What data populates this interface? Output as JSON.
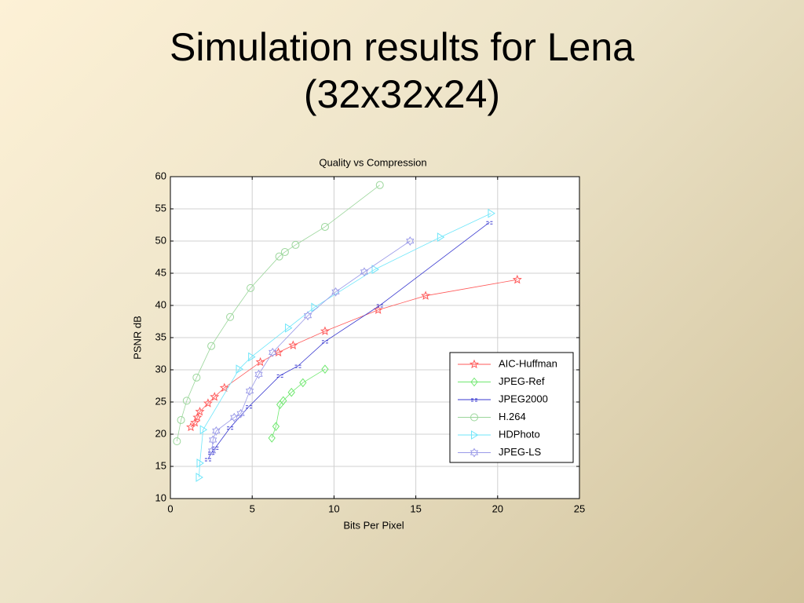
{
  "slide_title": "Simulation results for Lena (32x32x24)",
  "chart_data": {
    "type": "line",
    "title": "Quality vs Compression",
    "x_label": "Bits Per Pixel",
    "y_label": "PSNR dB",
    "xlim": [
      0,
      25
    ],
    "ylim": [
      10,
      60
    ],
    "xticks": [
      0,
      5,
      10,
      15,
      20,
      25
    ],
    "yticks": [
      10,
      15,
      20,
      25,
      30,
      35,
      40,
      45,
      50,
      55,
      60
    ],
    "grid": true,
    "legend": "lower right",
    "series": [
      {
        "name": "AIC-Huffman",
        "color": "#ff5a5a",
        "marker": "star",
        "x": [
          1.25,
          1.5,
          1.65,
          1.8,
          2.3,
          2.7,
          3.3,
          5.5,
          6.6,
          7.5,
          9.45,
          12.7,
          15.6,
          21.2
        ],
        "values": [
          21.1,
          21.8,
          22.6,
          23.5,
          24.8,
          25.8,
          27.2,
          31.2,
          32.7,
          33.8,
          36.0,
          39.3,
          41.5,
          44.0
        ]
      },
      {
        "name": "JPEG-Ref",
        "color": "#6fe86f",
        "marker": "diamond",
        "x": [
          6.2,
          6.45,
          6.7,
          6.9,
          7.4,
          8.1,
          9.45
        ],
        "values": [
          19.4,
          21.2,
          24.6,
          25.2,
          26.5,
          28.0,
          30.1
        ]
      },
      {
        "name": "JPEG2000",
        "color": "#3a3ad0",
        "marker": "dash",
        "x": [
          2.3,
          2.5,
          2.75,
          3.65,
          4.8,
          6.7,
          7.8,
          9.45,
          12.8,
          19.5
        ],
        "values": [
          16.1,
          17.1,
          17.9,
          21.0,
          24.3,
          29.1,
          30.6,
          34.4,
          40.0,
          52.9
        ]
      },
      {
        "name": "H.264",
        "color": "#9bd69b",
        "marker": "circle",
        "x": [
          0.4,
          0.65,
          1.0,
          1.6,
          2.5,
          3.65,
          4.9,
          6.65,
          7.0,
          7.65,
          9.45,
          12.8
        ],
        "values": [
          18.9,
          22.2,
          25.2,
          28.8,
          33.7,
          38.2,
          42.7,
          47.6,
          48.3,
          49.4,
          52.2,
          58.7
        ]
      },
      {
        "name": "HDPhoto",
        "color": "#6fe6fa",
        "marker": "triangle",
        "x": [
          1.75,
          1.8,
          2.0,
          4.2,
          4.95,
          7.2,
          8.8,
          12.5,
          16.5,
          19.6
        ],
        "values": [
          13.3,
          15.5,
          20.7,
          30.1,
          32.0,
          36.5,
          39.7,
          45.6,
          50.6,
          54.3
        ]
      },
      {
        "name": "JPEG-LS",
        "color": "#9a9ae8",
        "marker": "hexagram",
        "x": [
          2.55,
          2.6,
          2.8,
          3.9,
          4.3,
          4.85,
          5.4,
          6.25,
          8.4,
          10.1,
          11.85,
          14.65
        ],
        "values": [
          17.4,
          19.1,
          20.5,
          22.6,
          23.2,
          26.7,
          29.3,
          32.7,
          38.4,
          42.1,
          45.2,
          50.0
        ]
      }
    ]
  }
}
